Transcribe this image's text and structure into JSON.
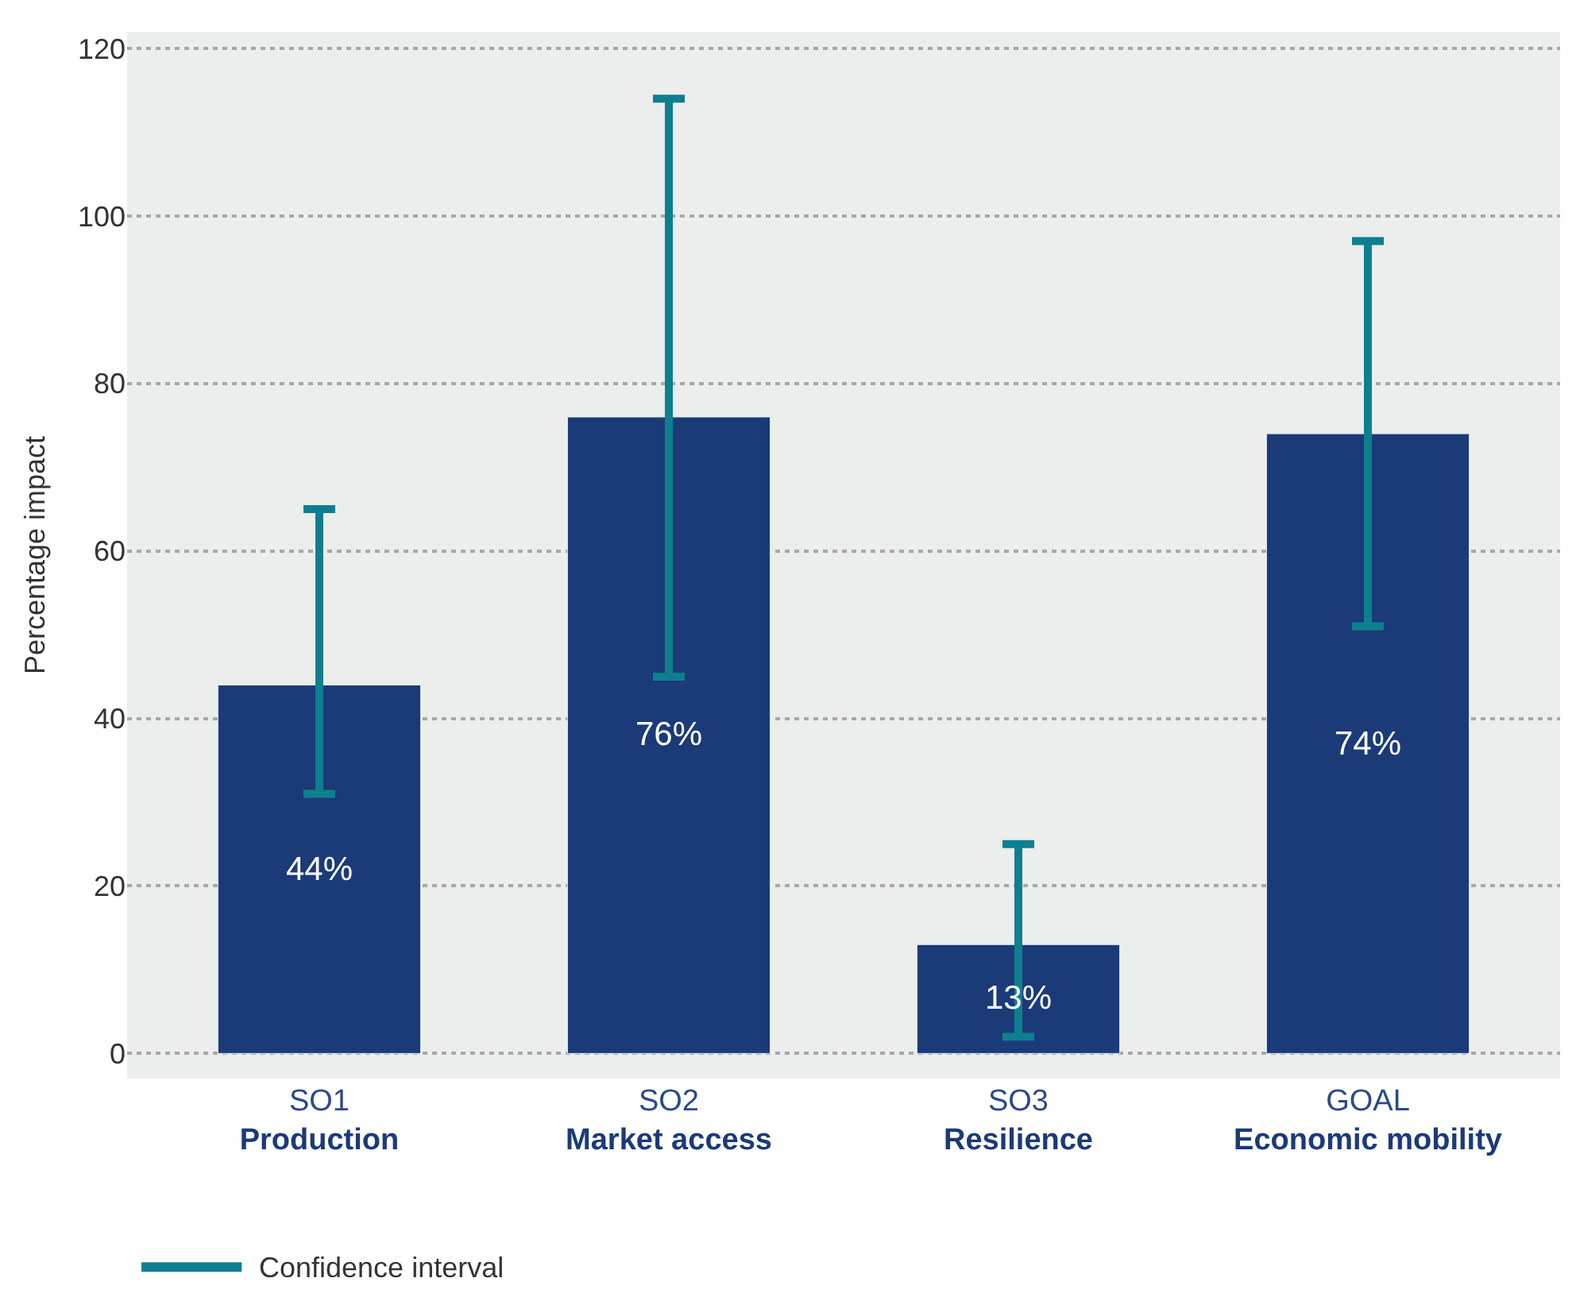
{
  "chart_data": {
    "type": "bar",
    "ylabel": "Percentage impact",
    "categories": [
      "SO1\nProduction",
      "SO2\nMarket access",
      "SO3\nResilience",
      "GOAL\nEconomic mobility"
    ],
    "series": [
      {
        "color": "#1b3a78",
        "values": [
          44,
          76,
          13,
          74
        ],
        "value_labels": [
          "44%",
          "76%",
          "13%",
          "74%"
        ],
        "errors": [
          [
            31,
            65
          ],
          [
            45,
            114
          ],
          [
            2,
            25
          ],
          [
            51,
            97
          ]
        ]
      }
    ],
    "ylim": [
      -3,
      122
    ],
    "yticks": [
      0,
      20,
      40,
      60,
      80,
      100,
      120
    ],
    "grid": "y",
    "annotations": [
      "Confidence interval"
    ]
  }
}
